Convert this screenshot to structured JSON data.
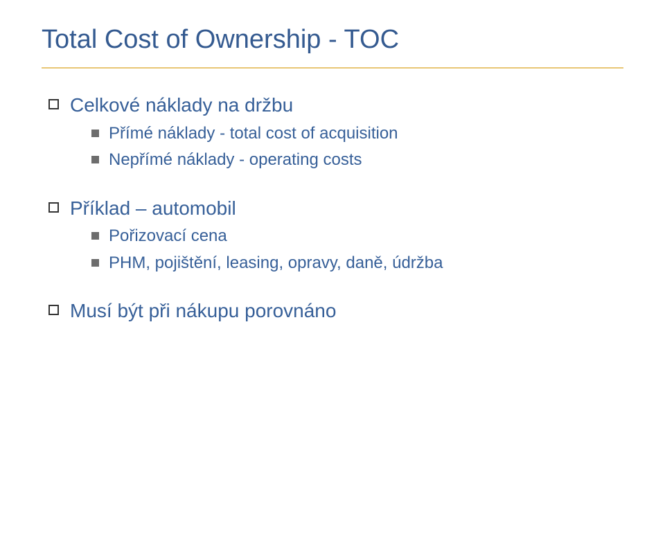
{
  "slide": {
    "title": "Total Cost of Ownership - TOC",
    "title_color": "#345a90",
    "title_fontsize": 38,
    "rule_color": "#e8c675",
    "background_color": "#ffffff",
    "body_color": "#365f98",
    "lvl1_fontsize": 28,
    "lvl2_fontsize": 24,
    "bullets": [
      {
        "text": "Celkové náklady na držbu",
        "children": [
          {
            "text": "Přímé náklady - total cost of acquisition"
          },
          {
            "text": "Nepřímé náklady - operating costs"
          }
        ]
      },
      {
        "text": "Příklad – automobil",
        "children": [
          {
            "text": "Pořizovací cena"
          },
          {
            "text": "PHM, pojištění, leasing, opravy, daně, údržba"
          }
        ]
      },
      {
        "text": "Musí být při nákupu porovnáno",
        "children": []
      }
    ],
    "markers": {
      "lvl1_border_color": "#333333",
      "lvl1_shadow_color": "#bfbfbf",
      "lvl2_fill_color": "#6d6d6d"
    }
  }
}
